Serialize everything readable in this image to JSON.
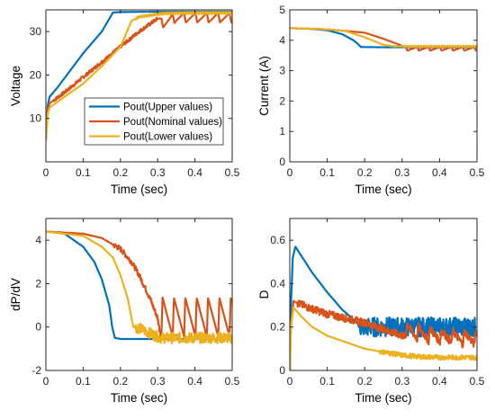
{
  "colors": {
    "upper": "#0072BD",
    "nominal": "#D95319",
    "lower": "#EDB120",
    "axis": "#262626",
    "background": "#ffffff"
  },
  "chart_data": [
    {
      "type": "line",
      "xlabel": "Time (sec)",
      "ylabel": "Voltage",
      "xlim": [
        0,
        0.5
      ],
      "ylim": [
        0,
        35
      ],
      "xticks": [
        "0",
        "0.1",
        "0.2",
        "0.3",
        "0.4",
        "0.5"
      ],
      "yticks": [
        "10",
        "20",
        "30"
      ],
      "ytick_values": [
        10,
        20,
        30
      ],
      "legend": {
        "placement": "center-left",
        "entries": [
          "Pout(Upper values)",
          "Pout(Nominal values)",
          "Pout(Lower values)"
        ]
      },
      "series": [
        {
          "name": "Pout(Upper values)",
          "color": "#0072BD",
          "x": [
            0,
            0.005,
            0.01,
            0.03,
            0.1,
            0.15,
            0.18,
            0.2,
            0.3,
            0.4,
            0.5
          ],
          "y": [
            5,
            13,
            15,
            17,
            25,
            30,
            34.4,
            34.5,
            34.6,
            34.6,
            34.6
          ]
        },
        {
          "name": "Pout(Nominal values)",
          "color": "#D95319",
          "x": [
            0,
            0.005,
            0.01,
            0.05,
            0.1,
            0.15,
            0.2,
            0.25,
            0.3,
            0.31,
            0.35,
            0.4,
            0.45,
            0.5
          ],
          "y": [
            5,
            12,
            13.5,
            16,
            19.5,
            23,
            26.5,
            30,
            33,
            33,
            34.3,
            34.3,
            34.3,
            34.3
          ]
        },
        {
          "name": "Pout(Lower values)",
          "color": "#EDB120",
          "x": [
            0,
            0.005,
            0.01,
            0.05,
            0.1,
            0.15,
            0.2,
            0.23,
            0.25,
            0.3,
            0.32,
            0.4,
            0.5
          ],
          "y": [
            5,
            11,
            12.5,
            15,
            18,
            22,
            26.5,
            32.5,
            33.4,
            34,
            34.2,
            34.3,
            34.3
          ]
        }
      ]
    },
    {
      "type": "line",
      "xlabel": "Time (sec)",
      "ylabel": "Current (A)",
      "xlim": [
        0,
        0.5
      ],
      "ylim": [
        0,
        5
      ],
      "xticks": [
        "0",
        "0.1",
        "0.2",
        "0.3",
        "0.4",
        "0.5"
      ],
      "yticks": [
        "0",
        "1",
        "2",
        "3",
        "4",
        "5"
      ],
      "ytick_values": [
        0,
        1,
        2,
        3,
        4,
        5
      ],
      "series": [
        {
          "name": "Upper values",
          "color": "#0072BD",
          "x": [
            0,
            0.05,
            0.1,
            0.14,
            0.17,
            0.18,
            0.19,
            0.25,
            0.5
          ],
          "y": [
            4.4,
            4.38,
            4.33,
            4.2,
            4.0,
            3.9,
            3.78,
            3.77,
            3.77
          ]
        },
        {
          "name": "Nominal values",
          "color": "#D95319",
          "x": [
            0,
            0.1,
            0.2,
            0.25,
            0.3,
            0.31,
            0.5
          ],
          "y": [
            4.4,
            4.36,
            4.25,
            4.05,
            3.82,
            3.78,
            3.78
          ]
        },
        {
          "name": "Lower values",
          "color": "#EDB120",
          "x": [
            0,
            0.1,
            0.15,
            0.2,
            0.23,
            0.25,
            0.28,
            0.5
          ],
          "y": [
            4.4,
            4.36,
            4.3,
            4.1,
            3.95,
            3.85,
            3.8,
            3.8
          ]
        }
      ]
    },
    {
      "type": "line",
      "xlabel": "Time (sec)",
      "ylabel": "dP/dV",
      "xlim": [
        0,
        0.5
      ],
      "ylim": [
        -2,
        5
      ],
      "xticks": [
        "0",
        "0.1",
        "0.2",
        "0.3",
        "0.4",
        "0.5"
      ],
      "yticks": [
        "-2",
        "0",
        "2",
        "4"
      ],
      "ytick_values": [
        -2,
        0,
        2,
        4
      ],
      "series": [
        {
          "name": "Upper values",
          "color": "#0072BD",
          "x": [
            0,
            0.05,
            0.1,
            0.13,
            0.15,
            0.17,
            0.178,
            0.185,
            0.2,
            0.3,
            0.5
          ],
          "y": [
            4.4,
            4.3,
            3.7,
            3.0,
            2.2,
            1.0,
            0.0,
            -0.5,
            -0.55,
            -0.55,
            -0.55
          ]
        },
        {
          "name": "Nominal values",
          "color": "#D95319",
          "x": [
            0,
            0.1,
            0.15,
            0.2,
            0.23,
            0.25,
            0.28,
            0.3,
            0.305,
            0.31,
            0.32,
            0.5
          ],
          "y": [
            4.4,
            4.3,
            4.1,
            3.6,
            3.0,
            2.4,
            1.3,
            0.4,
            -0.1,
            -0.4,
            -0.45,
            -0.45
          ]
        },
        {
          "name": "Lower values",
          "color": "#EDB120",
          "x": [
            0,
            0.1,
            0.15,
            0.18,
            0.2,
            0.22,
            0.23,
            0.235,
            0.25,
            0.3,
            0.31,
            0.5
          ],
          "y": [
            4.4,
            4.2,
            3.7,
            3.2,
            2.4,
            1.3,
            0.4,
            0.0,
            -0.05,
            -0.45,
            -0.5,
            -0.5
          ]
        }
      ]
    },
    {
      "type": "line",
      "xlabel": "Time (sec)",
      "ylabel": "D",
      "xlim": [
        0,
        0.5
      ],
      "ylim": [
        0,
        0.7
      ],
      "xticks": [
        "0",
        "0.1",
        "0.2",
        "0.3",
        "0.4",
        "0.5"
      ],
      "yticks": [
        "0",
        "0.2",
        "0.4",
        "0.6"
      ],
      "ytick_values": [
        0,
        0.2,
        0.4,
        0.6
      ],
      "series": [
        {
          "name": "Upper values",
          "color": "#0072BD",
          "x": [
            0,
            0.003,
            0.008,
            0.015,
            0.03,
            0.06,
            0.1,
            0.14,
            0.18,
            0.185,
            0.5
          ],
          "y": [
            0,
            0.3,
            0.52,
            0.57,
            0.53,
            0.45,
            0.36,
            0.28,
            0.22,
            0.2,
            0.2
          ]
        },
        {
          "name": "Nominal values",
          "color": "#D95319",
          "x": [
            0,
            0.003,
            0.01,
            0.02,
            0.05,
            0.1,
            0.15,
            0.2,
            0.25,
            0.3,
            0.35,
            0.4,
            0.45,
            0.5
          ],
          "y": [
            0,
            0.2,
            0.32,
            0.31,
            0.29,
            0.26,
            0.24,
            0.22,
            0.19,
            0.16,
            0.14,
            0.13,
            0.12,
            0.12
          ]
        },
        {
          "name": "Lower values",
          "color": "#EDB120",
          "x": [
            0,
            0.003,
            0.01,
            0.03,
            0.06,
            0.1,
            0.15,
            0.2,
            0.25,
            0.3,
            0.35,
            0.4,
            0.5
          ],
          "y": [
            0,
            0.2,
            0.29,
            0.25,
            0.2,
            0.16,
            0.13,
            0.1,
            0.085,
            0.07,
            0.063,
            0.06,
            0.06
          ]
        }
      ]
    }
  ]
}
